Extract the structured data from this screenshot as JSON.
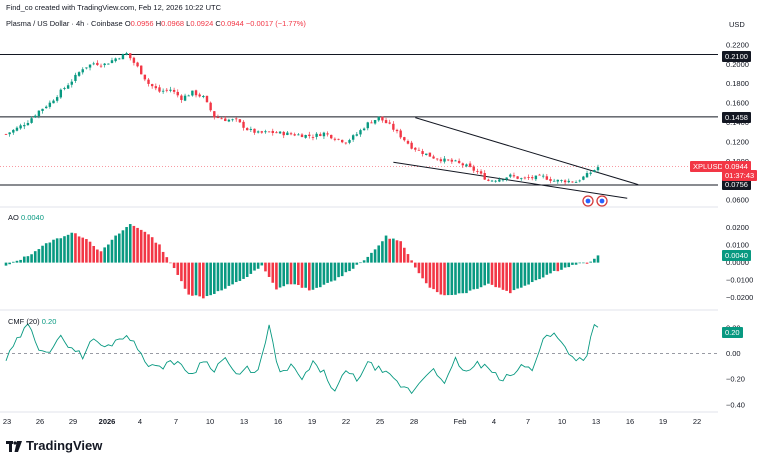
{
  "header": {
    "created_by": "Find_co created with TradingView.com, Feb 12, 2026 10:22 UTC",
    "currency": "USD"
  },
  "symbol": {
    "title": "Plasma / US Dollar · 4h · Coinbase",
    "o_label": "O",
    "o_value": "0.0956",
    "h_label": "H",
    "h_value": "0.0968",
    "l_label": "L",
    "l_value": "0.0924",
    "c_label": "C",
    "c_value": "0.0944",
    "change": "−0.0017 (−1.77%)",
    "down_color": "#f23645",
    "up_color": "#089981"
  },
  "price_tags": {
    "symbol": "XPLUSD",
    "price": "0.0944",
    "countdown": "01:37:43",
    "level_high": "0.2100",
    "level_mid": "0.1458",
    "level_low": "0.0756"
  },
  "ao": {
    "label": "AO",
    "value": "0.0040"
  },
  "cmf": {
    "label": "CMF (20)",
    "value": "0.20"
  },
  "x_axis_labels": [
    "23",
    "26",
    "29",
    "2026",
    "4",
    "7",
    "10",
    "13",
    "16",
    "19",
    "22",
    "25",
    "28",
    "Feb",
    "4",
    "7",
    "10",
    "13",
    "16",
    "19",
    "22"
  ],
  "logo": "TradingView",
  "chart_data": [
    {
      "type": "candlestick",
      "title": "Plasma / US Dollar · 4h · Coinbase",
      "ylim": [
        0.055,
        0.225
      ],
      "y_ticks": [
        "0.2200",
        "0.2000",
        "0.1800",
        "0.1600",
        "0.1400",
        "0.1200",
        "0.1000",
        "0.0800",
        "0.0600"
      ],
      "y_tick_values": [
        0.22,
        0.2,
        0.18,
        0.16,
        0.14,
        0.12,
        0.1,
        0.08,
        0.06
      ],
      "horizontal_levels": [
        0.21,
        0.1458,
        0.0756
      ],
      "close_path": [
        [
          0,
          0.128
        ],
        [
          3,
          0.134
        ],
        [
          6,
          0.141
        ],
        [
          9,
          0.152
        ],
        [
          12,
          0.16
        ],
        [
          15,
          0.172
        ],
        [
          18,
          0.183
        ],
        [
          21,
          0.196
        ],
        [
          24,
          0.201
        ],
        [
          27,
          0.2
        ],
        [
          30,
          0.206
        ],
        [
          33,
          0.211
        ],
        [
          36,
          0.197
        ],
        [
          39,
          0.18
        ],
        [
          42,
          0.172
        ],
        [
          45,
          0.174
        ],
        [
          48,
          0.165
        ],
        [
          51,
          0.171
        ],
        [
          54,
          0.166
        ],
        [
          57,
          0.146
        ],
        [
          60,
          0.143
        ],
        [
          63,
          0.142
        ],
        [
          66,
          0.133
        ],
        [
          69,
          0.129
        ],
        [
          72,
          0.13
        ],
        [
          75,
          0.129
        ],
        [
          78,
          0.128
        ],
        [
          81,
          0.127
        ],
        [
          84,
          0.126
        ],
        [
          87,
          0.129
        ],
        [
          90,
          0.124
        ],
        [
          93,
          0.12
        ],
        [
          96,
          0.128
        ],
        [
          99,
          0.139
        ],
        [
          102,
          0.145
        ],
        [
          105,
          0.137
        ],
        [
          108,
          0.126
        ],
        [
          111,
          0.115
        ],
        [
          114,
          0.109
        ],
        [
          117,
          0.104
        ],
        [
          120,
          0.101
        ],
        [
          123,
          0.099
        ],
        [
          126,
          0.095
        ],
        [
          129,
          0.089
        ],
        [
          132,
          0.08
        ],
        [
          135,
          0.082
        ],
        [
          138,
          0.085
        ],
        [
          141,
          0.082
        ],
        [
          144,
          0.083
        ],
        [
          147,
          0.084
        ],
        [
          150,
          0.08
        ],
        [
          153,
          0.08
        ],
        [
          156,
          0.079
        ],
        [
          159,
          0.086
        ],
        [
          162,
          0.094
        ]
      ],
      "wedge_upper": [
        [
          0.145,
          112
        ],
        [
          0.076,
          173
        ]
      ],
      "wedge_lower": [
        [
          0.099,
          106
        ],
        [
          0.062,
          170
        ]
      ]
    },
    {
      "type": "bar",
      "name": "AO",
      "ylim": [
        -0.026,
        0.029
      ],
      "y_ticks": [
        "0.0200",
        "0.0100",
        "0.0000",
        "−0.0100",
        "−0.0200"
      ],
      "y_tick_values": [
        0.02,
        0.01,
        0.0,
        -0.01,
        -0.02
      ],
      "shape": [
        [
          0,
          -0.002
        ],
        [
          6,
          0.004
        ],
        [
          12,
          0.012
        ],
        [
          18,
          0.017
        ],
        [
          22,
          0.014
        ],
        [
          26,
          0.006
        ],
        [
          30,
          0.015
        ],
        [
          34,
          0.022
        ],
        [
          38,
          0.018
        ],
        [
          42,
          0.01
        ],
        [
          45,
          0.0
        ],
        [
          50,
          -0.018
        ],
        [
          54,
          -0.02
        ],
        [
          60,
          -0.015
        ],
        [
          66,
          -0.008
        ],
        [
          70,
          -0.002
        ],
        [
          74,
          -0.015
        ],
        [
          78,
          -0.012
        ],
        [
          84,
          -0.016
        ],
        [
          90,
          -0.01
        ],
        [
          95,
          -0.003
        ],
        [
          100,
          0.005
        ],
        [
          104,
          0.015
        ],
        [
          108,
          0.012
        ],
        [
          112,
          -0.003
        ],
        [
          116,
          -0.014
        ],
        [
          120,
          -0.019
        ],
        [
          126,
          -0.017
        ],
        [
          132,
          -0.012
        ],
        [
          138,
          -0.017
        ],
        [
          144,
          -0.011
        ],
        [
          150,
          -0.005
        ],
        [
          156,
          -0.001
        ],
        [
          160,
          0.0
        ],
        [
          162,
          0.004
        ]
      ]
    },
    {
      "type": "line",
      "name": "CMF (20)",
      "ylim": [
        -0.44,
        0.3
      ],
      "y_ticks": [
        "0.20",
        "0.00",
        "−0.20",
        "−0.40"
      ],
      "y_tick_values": [
        0.2,
        0.0,
        -0.2,
        -0.4
      ],
      "shape": [
        [
          0,
          -0.05
        ],
        [
          3,
          0.1
        ],
        [
          6,
          0.22
        ],
        [
          9,
          0.05
        ],
        [
          12,
          0.02
        ],
        [
          15,
          0.12
        ],
        [
          18,
          0.05
        ],
        [
          21,
          -0.02
        ],
        [
          24,
          0.12
        ],
        [
          27,
          0.04
        ],
        [
          30,
          0.1
        ],
        [
          33,
          0.15
        ],
        [
          36,
          0.04
        ],
        [
          39,
          -0.08
        ],
        [
          42,
          -0.12
        ],
        [
          45,
          -0.05
        ],
        [
          48,
          -0.1
        ],
        [
          51,
          -0.16
        ],
        [
          54,
          -0.05
        ],
        [
          57,
          -0.12
        ],
        [
          60,
          -0.03
        ],
        [
          63,
          -0.18
        ],
        [
          66,
          -0.12
        ],
        [
          69,
          -0.14
        ],
        [
          72,
          0.2
        ],
        [
          75,
          -0.16
        ],
        [
          78,
          -0.1
        ],
        [
          81,
          -0.2
        ],
        [
          84,
          -0.08
        ],
        [
          87,
          -0.15
        ],
        [
          90,
          -0.3
        ],
        [
          93,
          -0.14
        ],
        [
          96,
          -0.2
        ],
        [
          99,
          -0.08
        ],
        [
          102,
          -0.12
        ],
        [
          105,
          -0.18
        ],
        [
          108,
          -0.25
        ],
        [
          111,
          -0.3
        ],
        [
          114,
          -0.2
        ],
        [
          117,
          -0.1
        ],
        [
          120,
          -0.25
        ],
        [
          123,
          -0.05
        ],
        [
          126,
          -0.15
        ],
        [
          129,
          -0.08
        ],
        [
          132,
          -0.12
        ],
        [
          135,
          -0.2
        ],
        [
          138,
          -0.18
        ],
        [
          141,
          -0.1
        ],
        [
          144,
          -0.12
        ],
        [
          147,
          0.12
        ],
        [
          150,
          0.15
        ],
        [
          153,
          0.05
        ],
        [
          156,
          -0.05
        ],
        [
          159,
          -0.02
        ],
        [
          161,
          0.25
        ],
        [
          162,
          0.2
        ]
      ]
    }
  ]
}
